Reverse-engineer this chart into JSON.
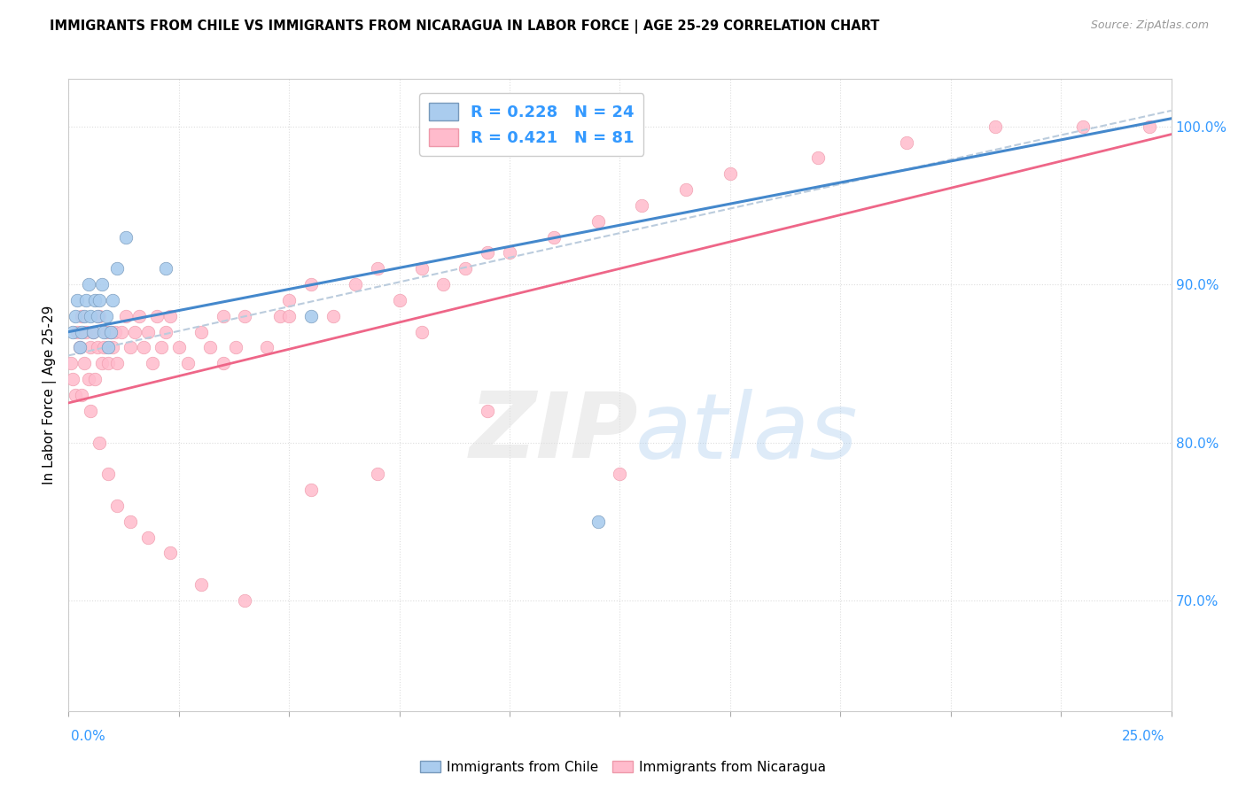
{
  "title": "IMMIGRANTS FROM CHILE VS IMMIGRANTS FROM NICARAGUA IN LABOR FORCE | AGE 25-29 CORRELATION CHART",
  "source": "Source: ZipAtlas.com",
  "ylabel": "In Labor Force | Age 25-29",
  "chile_color": "#aaccee",
  "chile_edge": "#7799bb",
  "nicaragua_color": "#ffbbcc",
  "nicaragua_edge": "#ee99aa",
  "trend_chile_color": "#4488cc",
  "trend_nicaragua_color": "#ee6688",
  "trend_chile_dash": "#bbccdd",
  "xmin": 0.0,
  "xmax": 25.0,
  "ymin": 63.0,
  "ymax": 103.0,
  "yticks": [
    70.0,
    80.0,
    90.0,
    100.0
  ],
  "chile_R": 0.228,
  "chile_N": 24,
  "nicaragua_R": 0.421,
  "nicaragua_N": 81,
  "legend_color": "#3399ff",
  "right_axis_color": "#3399ff",
  "grid_color": "#dddddd",
  "chile_scatter_x": [
    0.1,
    0.15,
    0.2,
    0.25,
    0.3,
    0.35,
    0.4,
    0.45,
    0.5,
    0.55,
    0.6,
    0.65,
    0.7,
    0.75,
    0.8,
    0.85,
    0.9,
    0.95,
    1.0,
    1.1,
    1.3,
    2.2,
    5.5,
    12.0
  ],
  "chile_scatter_y": [
    87,
    88,
    89,
    86,
    87,
    88,
    89,
    90,
    88,
    87,
    89,
    88,
    89,
    90,
    87,
    88,
    86,
    87,
    89,
    91,
    93,
    91,
    88,
    75
  ],
  "nicaragua_scatter_x": [
    0.05,
    0.1,
    0.15,
    0.2,
    0.25,
    0.3,
    0.35,
    0.4,
    0.45,
    0.5,
    0.55,
    0.6,
    0.65,
    0.7,
    0.75,
    0.8,
    0.85,
    0.9,
    0.95,
    1.0,
    1.05,
    1.1,
    1.2,
    1.3,
    1.4,
    1.5,
    1.6,
    1.7,
    1.8,
    1.9,
    2.0,
    2.1,
    2.2,
    2.3,
    2.5,
    2.7,
    3.0,
    3.2,
    3.5,
    3.8,
    4.0,
    4.5,
    4.8,
    5.0,
    5.5,
    6.0,
    6.5,
    7.0,
    7.5,
    8.0,
    8.5,
    9.0,
    9.5,
    10.0,
    11.0,
    12.0,
    13.0,
    14.0,
    15.0,
    17.0,
    19.0,
    21.0,
    23.0,
    24.5,
    0.3,
    0.5,
    0.7,
    0.9,
    1.1,
    1.4,
    1.8,
    2.3,
    3.0,
    4.0,
    5.5,
    7.0,
    3.5,
    5.0,
    9.5,
    12.5,
    8.0
  ],
  "nicaragua_scatter_y": [
    85,
    84,
    83,
    87,
    86,
    83,
    85,
    87,
    84,
    86,
    87,
    84,
    86,
    88,
    85,
    86,
    87,
    85,
    87,
    86,
    87,
    85,
    87,
    88,
    86,
    87,
    88,
    86,
    87,
    85,
    88,
    86,
    87,
    88,
    86,
    85,
    87,
    86,
    88,
    86,
    88,
    86,
    88,
    89,
    90,
    88,
    90,
    91,
    89,
    91,
    90,
    91,
    92,
    92,
    93,
    94,
    95,
    96,
    97,
    98,
    99,
    100,
    100,
    100,
    88,
    82,
    80,
    78,
    76,
    75,
    74,
    73,
    71,
    70,
    77,
    78,
    85,
    88,
    82,
    78,
    87
  ]
}
